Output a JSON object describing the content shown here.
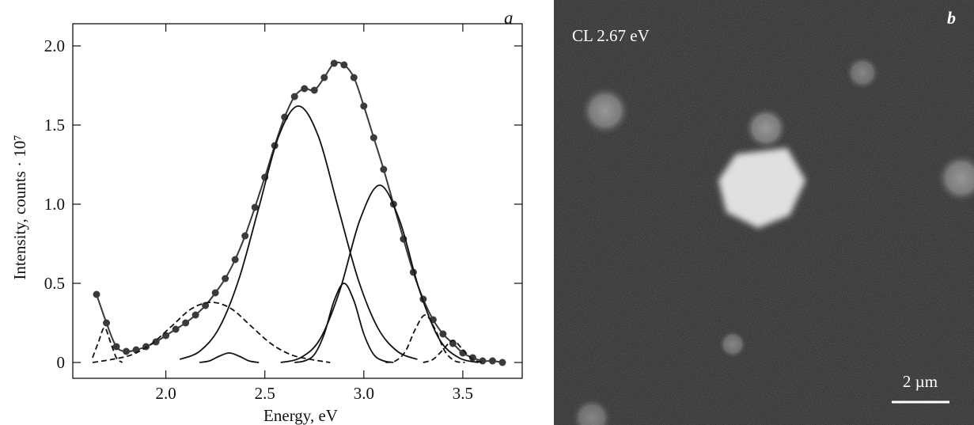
{
  "chart_data": {
    "type": "line",
    "panel_label": "a",
    "xlabel": "Energy, eV",
    "ylabel": "Intensity, counts · 10⁷",
    "xlim": [
      1.53,
      3.8
    ],
    "ylim": [
      -0.1,
      2.14
    ],
    "xticks": [
      {
        "value": 2,
        "label": "2.0"
      },
      2.5,
      {
        "value": 3,
        "label": "3.0"
      },
      3.5
    ],
    "yticks": [
      0,
      0.5,
      {
        "value": 1,
        "label": "1.0"
      },
      1.5,
      {
        "value": 2,
        "label": "2.0"
      }
    ],
    "grid": false,
    "series": [
      {
        "color": "#3a3a3a",
        "style": "solid",
        "markers": true,
        "x": [
          1.65,
          1.7,
          1.75,
          1.8,
          1.85,
          1.9,
          1.95,
          2.0,
          2.05,
          2.1,
          2.15,
          2.2,
          2.25,
          2.3,
          2.35,
          2.4,
          2.45,
          2.5,
          2.55,
          2.6,
          2.65,
          2.7,
          2.75,
          2.8,
          2.85,
          2.9,
          2.95,
          3.0,
          3.05,
          3.1,
          3.15,
          3.2,
          3.25,
          3.3,
          3.35,
          3.4,
          3.45,
          3.5,
          3.55,
          3.6,
          3.65,
          3.7
        ],
        "values": [
          0.43,
          0.25,
          0.1,
          0.07,
          0.08,
          0.1,
          0.13,
          0.17,
          0.21,
          0.25,
          0.3,
          0.36,
          0.44,
          0.53,
          0.65,
          0.8,
          0.98,
          1.17,
          1.37,
          1.55,
          1.68,
          1.73,
          1.72,
          1.8,
          1.89,
          1.88,
          1.8,
          1.62,
          1.42,
          1.22,
          1.0,
          0.78,
          0.57,
          0.4,
          0.27,
          0.18,
          0.12,
          0.06,
          0.03,
          0.01,
          0.01,
          0
        ]
      },
      {
        "color": "#111111",
        "style": "dashed",
        "markers": false,
        "x": [
          1.63,
          1.66,
          1.69,
          1.72,
          1.75,
          1.78
        ],
        "values": [
          0.03,
          0.13,
          0.22,
          0.13,
          0.03,
          0
        ]
      },
      {
        "color": "#111111",
        "style": "dashed",
        "markers": false,
        "x": [
          1.63,
          1.73,
          1.83,
          1.93,
          2.03,
          2.13,
          2.23,
          2.33,
          2.43,
          2.53,
          2.63,
          2.73,
          2.83
        ],
        "values": [
          0,
          0.02,
          0.05,
          0.12,
          0.23,
          0.34,
          0.38,
          0.34,
          0.23,
          0.12,
          0.05,
          0.02,
          0
        ]
      },
      {
        "color": "#111111",
        "style": "solid",
        "markers": false,
        "x": [
          2.17,
          2.22,
          2.27,
          2.32,
          2.37,
          2.42,
          2.47
        ],
        "values": [
          0,
          0.01,
          0.04,
          0.06,
          0.04,
          0.01,
          0
        ]
      },
      {
        "color": "#111111",
        "style": "solid",
        "markers": false,
        "x": [
          2.07,
          2.17,
          2.27,
          2.37,
          2.47,
          2.57,
          2.67,
          2.77,
          2.87,
          2.97,
          3.07,
          3.17,
          3.27
        ],
        "values": [
          0.02,
          0.07,
          0.22,
          0.53,
          0.98,
          1.43,
          1.62,
          1.43,
          0.98,
          0.53,
          0.22,
          0.07,
          0.02
        ]
      },
      {
        "color": "#111111",
        "style": "solid",
        "markers": false,
        "x": [
          2.65,
          2.7,
          2.75,
          2.8,
          2.85,
          2.9,
          2.95,
          3.0,
          3.05,
          3.1,
          3.15
        ],
        "values": [
          0,
          0.01,
          0.05,
          0.18,
          0.39,
          0.5,
          0.39,
          0.18,
          0.05,
          0.01,
          0
        ]
      },
      {
        "color": "#111111",
        "style": "solid",
        "markers": false,
        "x": [
          2.58,
          2.68,
          2.78,
          2.88,
          2.98,
          3.08,
          3.18,
          3.28,
          3.38,
          3.48,
          3.58
        ],
        "values": [
          0,
          0.03,
          0.15,
          0.46,
          0.9,
          1.12,
          0.9,
          0.46,
          0.15,
          0.03,
          0
        ]
      },
      {
        "color": "#111111",
        "style": "dashed",
        "markers": false,
        "x": [
          3.11,
          3.16,
          3.21,
          3.26,
          3.31,
          3.36,
          3.41,
          3.46,
          3.51
        ],
        "values": [
          0,
          0.01,
          0.07,
          0.21,
          0.3,
          0.21,
          0.07,
          0.01,
          0
        ]
      },
      {
        "color": "#111111",
        "style": "dashed",
        "markers": false,
        "x": [
          3.3,
          3.35,
          3.4,
          3.45,
          3.5,
          3.55,
          3.6
        ],
        "values": [
          0,
          0.02,
          0.08,
          0.14,
          0.08,
          0.02,
          0
        ]
      }
    ]
  },
  "image_panel": {
    "panel_label": "b",
    "caption": "CL 2.67 eV",
    "scale_bar": "2 µm"
  }
}
